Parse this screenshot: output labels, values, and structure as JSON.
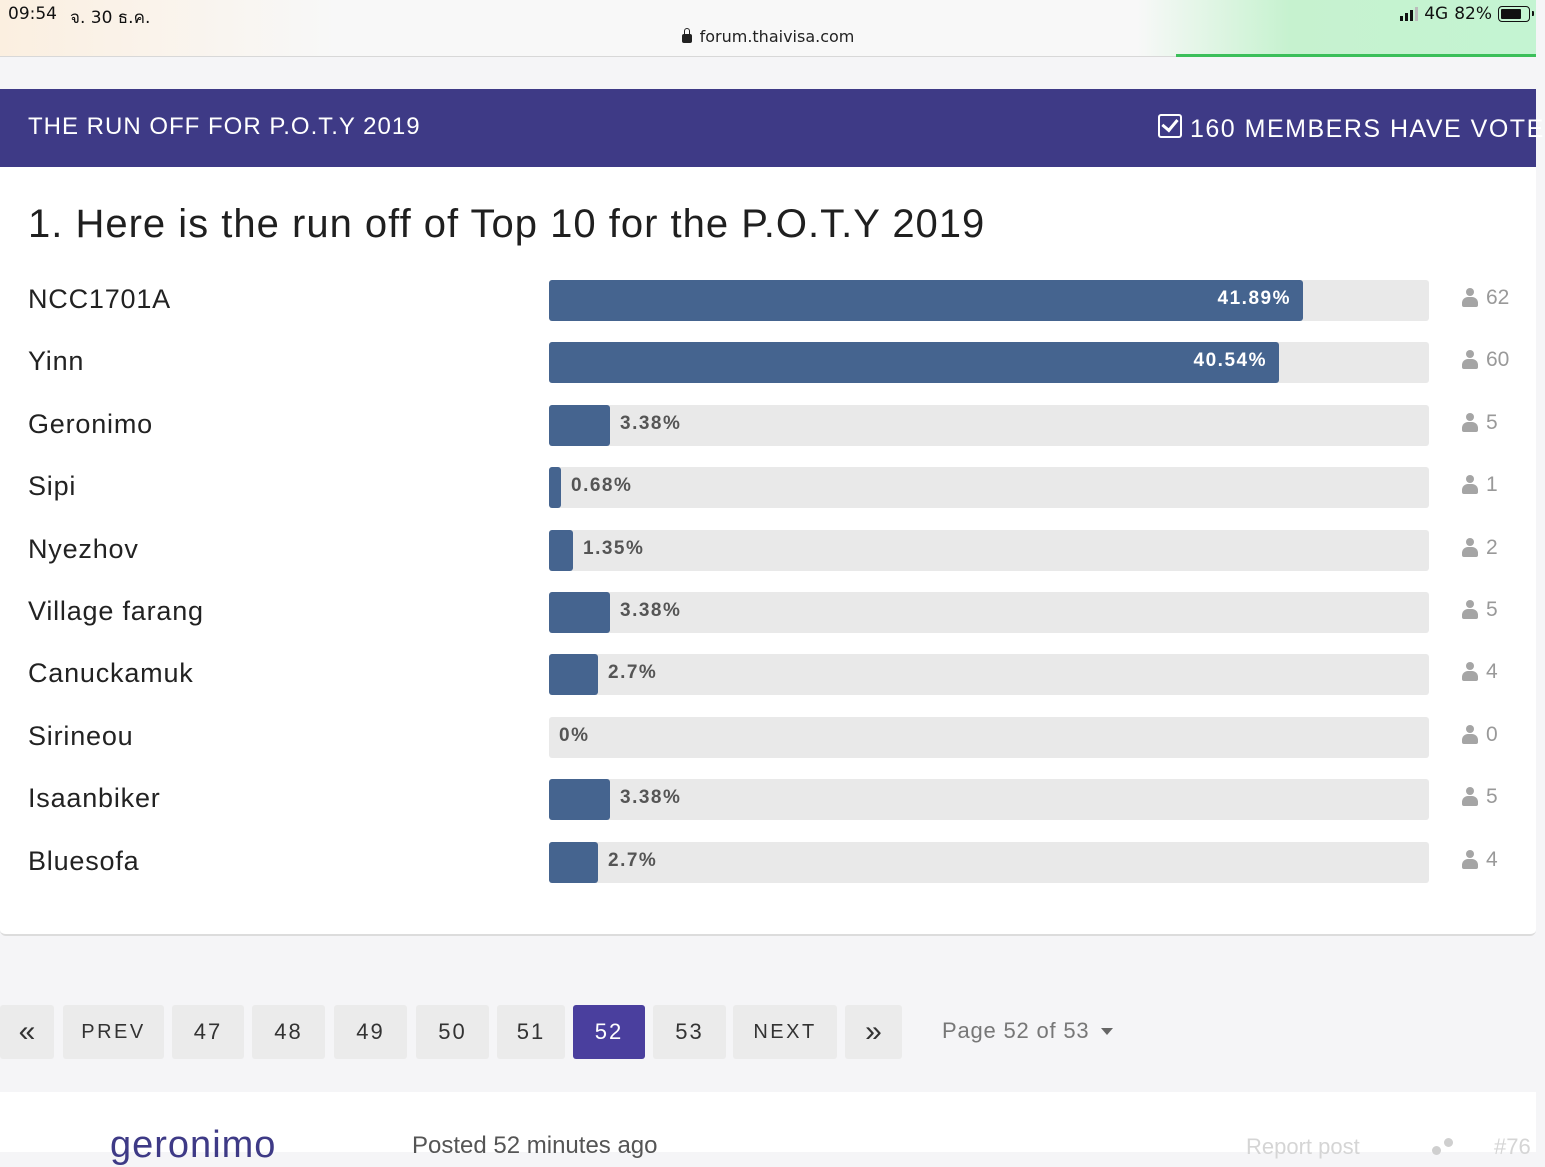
{
  "status_bar": {
    "time": "09:54",
    "date": "จ. 30 ธ.ค.",
    "url": "forum.thaivisa.com",
    "network": "4G",
    "battery": "82%"
  },
  "poll": {
    "title": "THE RUN OFF FOR P.O.T.Y 2019",
    "voted_text": "160 MEMBERS HAVE VOTE",
    "question": "1. Here is the run off of Top 10 for the P.O.T.Y 2019",
    "options": [
      {
        "name": "NCC1701A",
        "percent_label": "41.89%",
        "fraction": 0.4189,
        "votes": "62"
      },
      {
        "name": "Yinn",
        "percent_label": "40.54%",
        "fraction": 0.4054,
        "votes": "60"
      },
      {
        "name": "Geronimo",
        "percent_label": "3.38%",
        "fraction": 0.0338,
        "votes": "5"
      },
      {
        "name": "Sipi",
        "percent_label": "0.68%",
        "fraction": 0.0068,
        "votes": "1"
      },
      {
        "name": "Nyezhov",
        "percent_label": "1.35%",
        "fraction": 0.0135,
        "votes": "2"
      },
      {
        "name": "Village farang",
        "percent_label": "3.38%",
        "fraction": 0.0338,
        "votes": "5"
      },
      {
        "name": "Canuckamuk",
        "percent_label": "2.7%",
        "fraction": 0.027,
        "votes": "4"
      },
      {
        "name": "Sirineou",
        "percent_label": "0%",
        "fraction": 0,
        "votes": "0"
      },
      {
        "name": "Isaanbiker",
        "percent_label": "3.38%",
        "fraction": 0.0338,
        "votes": "5"
      },
      {
        "name": "Bluesofa",
        "percent_label": "2.7%",
        "fraction": 0.027,
        "votes": "4"
      }
    ]
  },
  "pagination": {
    "first_label": "«",
    "prev_label": "PREV",
    "pages": [
      "47",
      "48",
      "49",
      "50",
      "51",
      "52",
      "53"
    ],
    "active_page": "52",
    "next_label": "NEXT",
    "last_label": "»",
    "page_indicator": "Page 52 of 53"
  },
  "next_post": {
    "author": "geronimo",
    "posted": "Posted 52 minutes ago",
    "report": "Report post",
    "number": "#76"
  },
  "colors": {
    "header_bg": "#3e3a86",
    "bar_fill": "#45648f",
    "bar_track": "#e9e9e9",
    "active_page": "#4a3f9e"
  }
}
